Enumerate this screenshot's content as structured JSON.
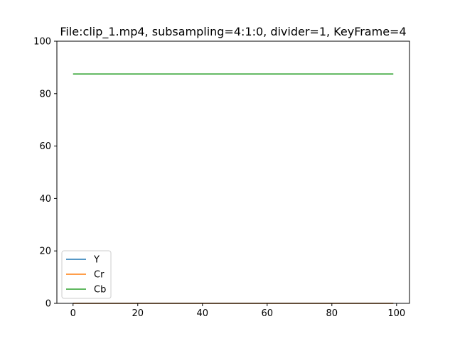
{
  "chart_data": {
    "type": "line",
    "title": "File:clip_1.mp4, subsampling=4:1:0, divider=1, KeyFrame=4",
    "xlabel": "",
    "ylabel": "",
    "xlim": [
      -5,
      104
    ],
    "ylim": [
      0,
      100
    ],
    "x_ticks": [
      0,
      20,
      40,
      60,
      80,
      100
    ],
    "y_ticks": [
      0,
      20,
      40,
      60,
      80,
      100
    ],
    "grid": false,
    "legend_position": "lower-left",
    "series": [
      {
        "name": "Y",
        "color": "#1f77b4",
        "x": [
          0,
          99
        ],
        "y": [
          0,
          0
        ]
      },
      {
        "name": "Cr",
        "color": "#ff7f0e",
        "x": [
          0,
          99
        ],
        "y": [
          0,
          0
        ]
      },
      {
        "name": "Cb",
        "color": "#2ca02c",
        "x": [
          0,
          99
        ],
        "y": [
          87.5,
          87.5
        ]
      }
    ]
  }
}
